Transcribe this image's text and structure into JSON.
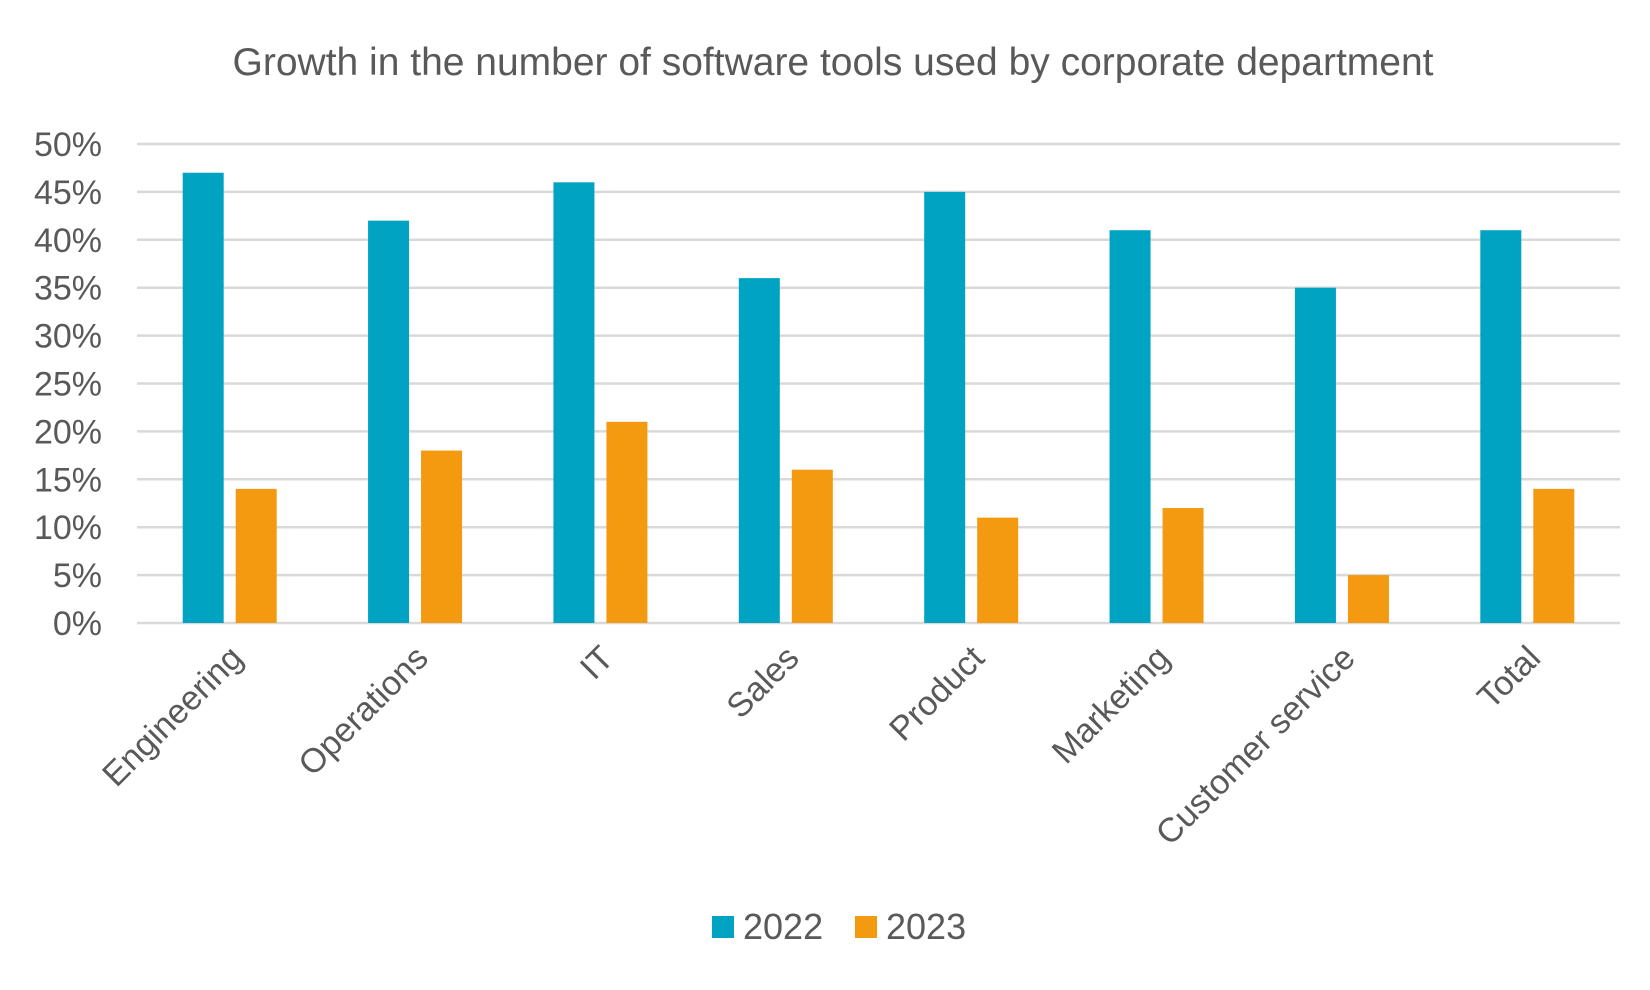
{
  "chart_data": {
    "type": "bar",
    "title": "Growth in the number of software tools used by corporate department",
    "xlabel": "",
    "ylabel": "",
    "categories": [
      "Engineering",
      "Operations",
      "IT",
      "Sales",
      "Product",
      "Marketing",
      "Customer service",
      "Total"
    ],
    "series": [
      {
        "name": "2022",
        "color": "#00A3C1",
        "values": [
          47,
          42,
          46,
          36,
          45,
          41,
          35,
          41
        ]
      },
      {
        "name": "2023",
        "color": "#F39A10",
        "values": [
          14,
          18,
          21,
          16,
          11,
          12,
          5,
          14
        ]
      }
    ],
    "ylim": [
      0,
      50
    ],
    "yticks": [
      "0%",
      "5%",
      "10%",
      "15%",
      "20%",
      "25%",
      "30%",
      "35%",
      "40%",
      "45%",
      "50%"
    ],
    "grid": true,
    "legend_position": "bottom"
  }
}
